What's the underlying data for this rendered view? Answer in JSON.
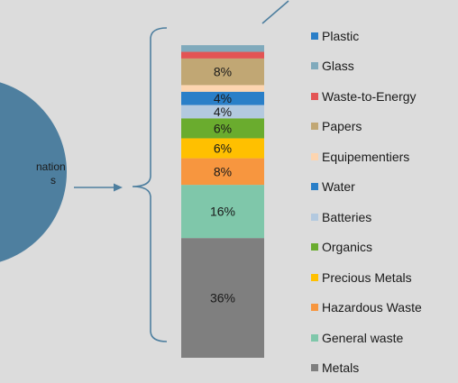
{
  "circle_text": {
    "line1": "nation",
    "line2": "s"
  },
  "chart_data": {
    "type": "bar",
    "stacked": true,
    "bottom_to_top": [
      "Metals",
      "General waste",
      "Hazardous Waste",
      "Precious Metals",
      "Organics",
      "Batteries",
      "Water",
      "Equipementiers",
      "Papers",
      "Waste-to-Energy",
      "Glass",
      "Plastic"
    ],
    "values": [
      36,
      16,
      8,
      6,
      6,
      4,
      4,
      2,
      8,
      2,
      2,
      0
    ],
    "data_labels": [
      "36%",
      "16%",
      "8%",
      "6%",
      "6%",
      "4%",
      "4%",
      "",
      "8%",
      "",
      "",
      ""
    ],
    "colors": [
      "#7f7f7f",
      "#7fc7aa",
      "#f7963f",
      "#ffc000",
      "#6aac2e",
      "#b3c9df",
      "#2a7fc8",
      "#fdd5b0",
      "#c1a774",
      "#e35454",
      "#80aabc",
      "#2a7fc8"
    ],
    "ylim": [
      0,
      100
    ]
  },
  "legend": {
    "entries": [
      {
        "label": "Plastic",
        "color": "#2a7fc8"
      },
      {
        "label": "Glass",
        "color": "#80aabc"
      },
      {
        "label": "Waste-to-Energy",
        "color": "#e35454"
      },
      {
        "label": "Papers",
        "color": "#c1a774"
      },
      {
        "label": "Equipementiers",
        "color": "#fdd5b0"
      },
      {
        "label": "Water",
        "color": "#2a7fc8"
      },
      {
        "label": "Batteries",
        "color": "#b3c9df"
      },
      {
        "label": "Organics",
        "color": "#6aac2e"
      },
      {
        "label": "Precious Metals",
        "color": "#ffc000"
      },
      {
        "label": "Hazardous Waste",
        "color": "#f7963f"
      },
      {
        "label": "General waste",
        "color": "#7fc7aa"
      },
      {
        "label": "Metals",
        "color": "#7f7f7f"
      }
    ]
  },
  "colors": {
    "circle": "#4e7f9f",
    "connector": "#4e7f9f",
    "background": "#dcdcdc"
  }
}
